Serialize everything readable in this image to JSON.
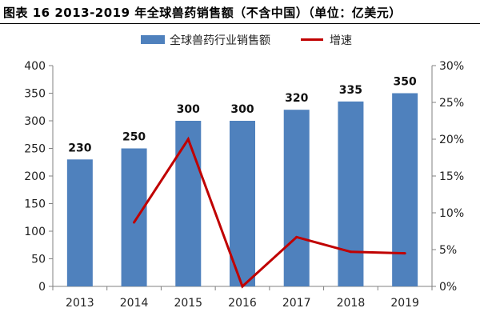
{
  "title": "图表 16 2013-2019 年全球兽药销售额（不含中国）（单位：亿美元）",
  "colors": {
    "bar": "#4F81BD",
    "line": "#C00000",
    "axis": "#808080"
  },
  "chart_data": {
    "type": "bar",
    "categories": [
      "2013",
      "2014",
      "2015",
      "2016",
      "2017",
      "2018",
      "2019"
    ],
    "series": [
      {
        "name": "全球兽药行业销售额",
        "type": "bar",
        "axis": "left",
        "values": [
          230,
          250,
          300,
          300,
          320,
          335,
          350
        ],
        "labels": [
          "230",
          "250",
          "300",
          "300",
          "320",
          "335",
          "350"
        ]
      },
      {
        "name": "增速",
        "type": "line",
        "axis": "right",
        "values": [
          null,
          8.7,
          20.0,
          0.0,
          6.7,
          4.7,
          4.5
        ]
      }
    ],
    "left_axis": {
      "min": 0,
      "max": 400,
      "step": 50,
      "ticks": [
        "0",
        "50",
        "100",
        "150",
        "200",
        "250",
        "300",
        "350",
        "400"
      ]
    },
    "right_axis": {
      "min": 0,
      "max": 30,
      "step": 5,
      "ticks": [
        "0%",
        "5%",
        "10%",
        "15%",
        "20%",
        "25%",
        "30%"
      ]
    },
    "legend_placement": "top",
    "grid": false
  }
}
